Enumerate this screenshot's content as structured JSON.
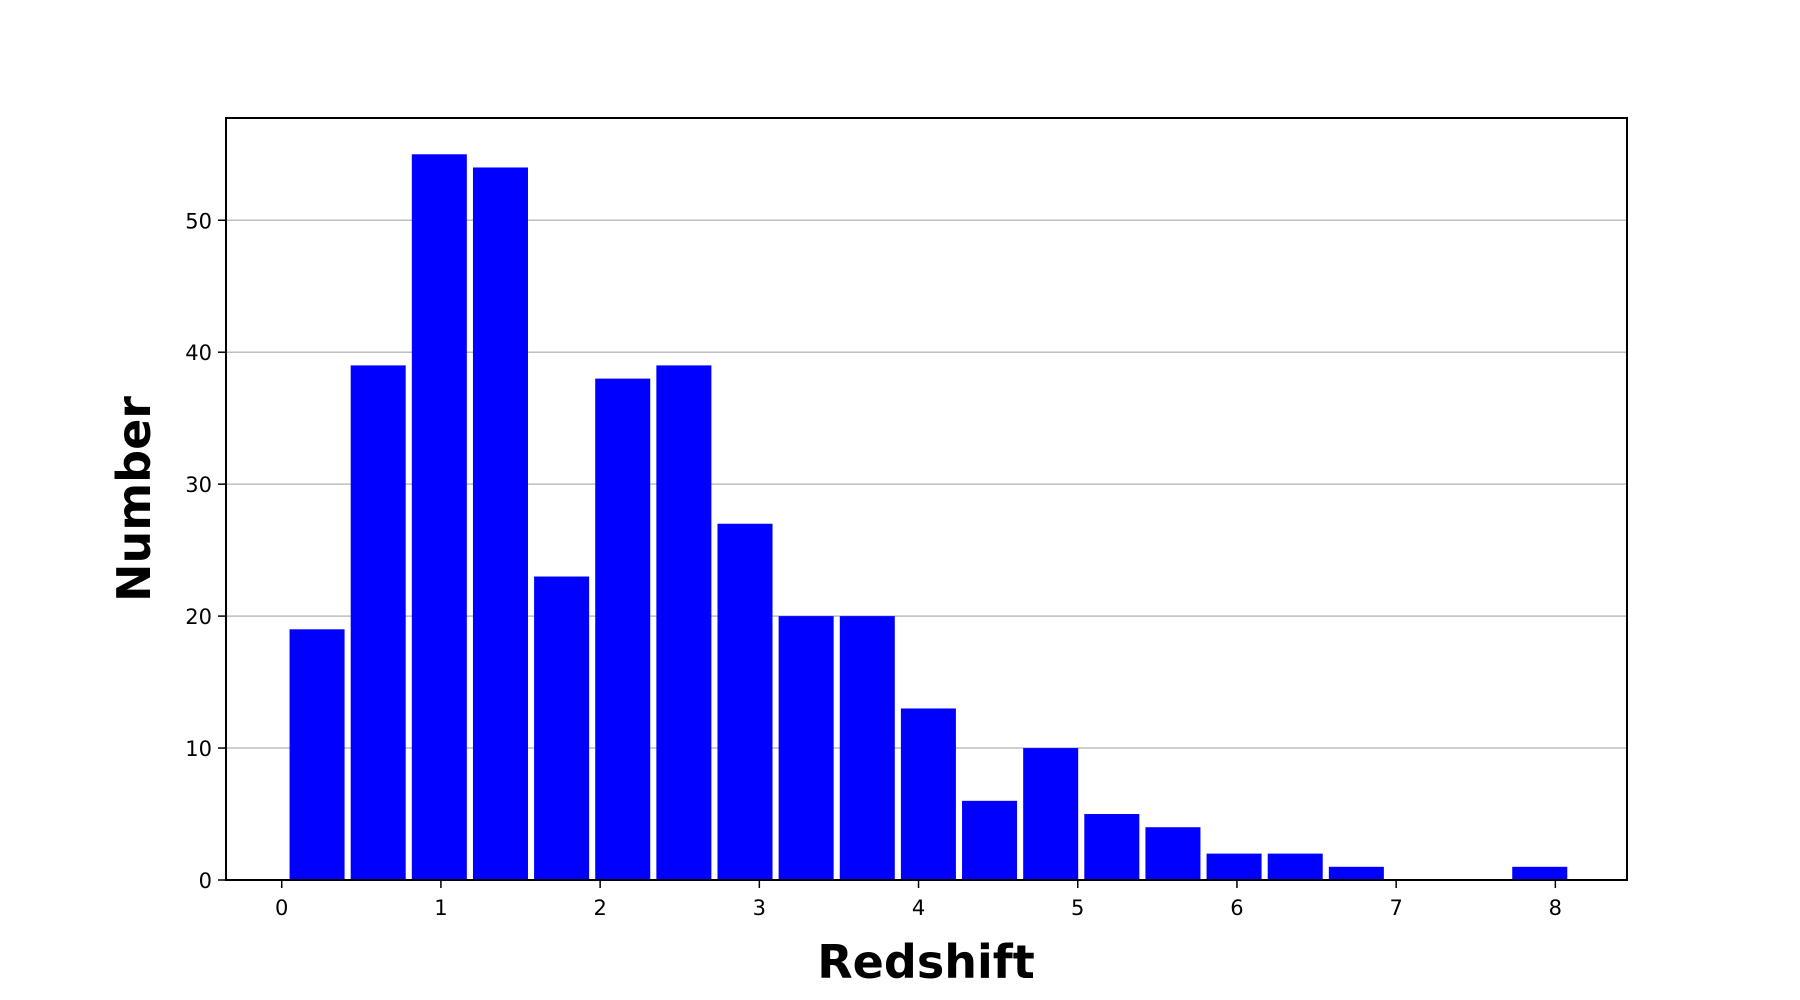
{
  "chart_data": {
    "type": "histogram",
    "x_label": "Redshift",
    "y_label": "Number",
    "bins": [
      0.03,
      0.414,
      0.798,
      1.182,
      1.566,
      1.95,
      2.334,
      2.718,
      3.102,
      3.486,
      3.87,
      4.254,
      4.638,
      5.022,
      5.406,
      5.79,
      6.174,
      6.558,
      6.942,
      7.326,
      7.71,
      8.094
    ],
    "values": [
      19,
      39,
      55,
      54,
      23,
      38,
      39,
      27,
      20,
      20,
      13,
      6,
      10,
      5,
      4,
      2,
      2,
      1,
      0,
      0,
      1
    ],
    "color": "#0000ff",
    "xlim": [
      -0.35,
      8.45
    ],
    "xticks": [
      0,
      1,
      2,
      3,
      4,
      5,
      6,
      7,
      8
    ],
    "ylim": [
      0,
      57.75
    ],
    "yticks": [
      0,
      10,
      20,
      30,
      40,
      50
    ],
    "grid": "y"
  }
}
